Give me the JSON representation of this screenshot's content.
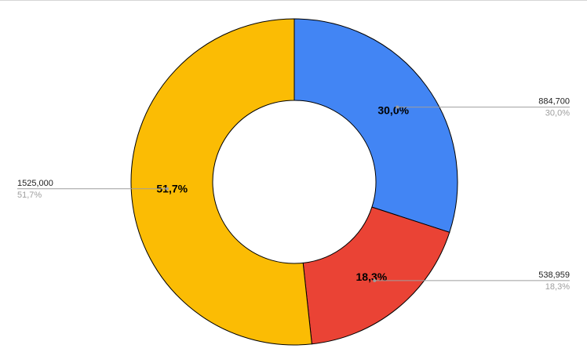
{
  "chart_data": {
    "type": "pie",
    "donut": true,
    "title": "",
    "start_angle_deg": 0,
    "direction": "clockwise",
    "slices": [
      {
        "value": 884700,
        "value_label": "884,700",
        "percent_label": "30,0%",
        "color": "#4285f4",
        "leader_side": "right"
      },
      {
        "value": 538959,
        "value_label": "538,959",
        "percent_label": "18,3%",
        "color": "#ea4335",
        "leader_side": "right"
      },
      {
        "value": 1525000,
        "value_label": "1525,000",
        "percent_label": "51,7%",
        "color": "#fbbc04",
        "leader_side": "left"
      }
    ],
    "slice_border_color": "#000000",
    "leader_line_color": "#9e9e9e",
    "legend": "none"
  }
}
